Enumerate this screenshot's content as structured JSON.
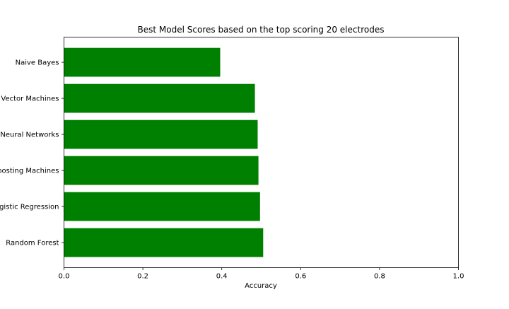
{
  "chart_data": {
    "type": "bar",
    "orientation": "horizontal",
    "title": "Best Model Scores based on the top scoring 20 electrodes",
    "xlabel": "Accuracy",
    "ylabel": "",
    "xlim": [
      0,
      1.0
    ],
    "xticks": [
      "0.0",
      "0.2",
      "0.4",
      "0.6",
      "0.8",
      "1.0"
    ],
    "categories": [
      "Random Forest",
      "Logistic Regression",
      "Gradient Boosting Machines",
      "Neural Networks",
      "Support Vector Machines",
      "Naive Bayes"
    ],
    "category_labels_visible": [
      "Random Forest",
      "gistic Regression",
      "oosting Machines",
      "Neural Networks",
      "Vector Machines",
      "Naive Bayes"
    ],
    "values": [
      0.505,
      0.497,
      0.493,
      0.491,
      0.484,
      0.396
    ],
    "bar_color": "#008000",
    "grid": false,
    "legend": "none"
  }
}
